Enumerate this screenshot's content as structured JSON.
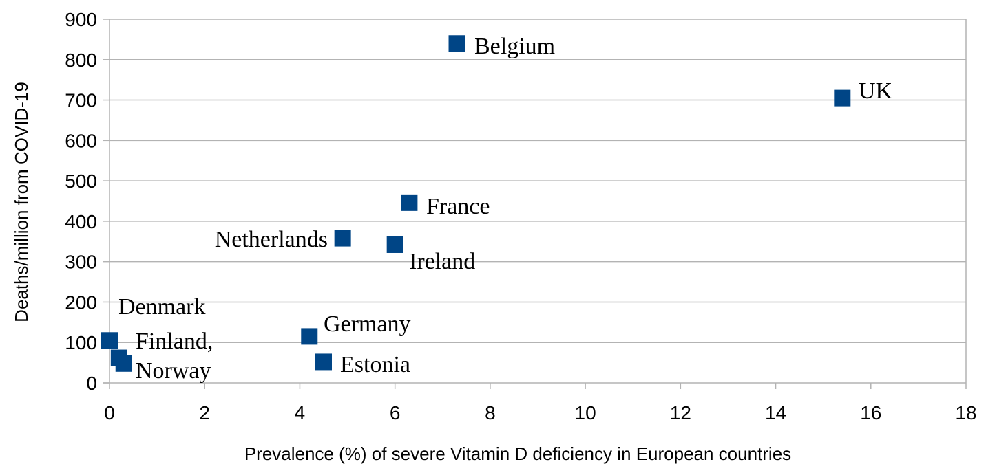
{
  "chart_data": {
    "type": "scatter",
    "title": "",
    "xlabel": "Prevalence (%) of severe Vitamin D deficiency in European countries",
    "ylabel": "Deaths/million from COVID-19",
    "xlim": [
      0,
      18
    ],
    "ylim": [
      0,
      900
    ],
    "x_ticks": [
      "0",
      "2",
      "4",
      "6",
      "8",
      "10",
      "12",
      "14",
      "16",
      "18"
    ],
    "y_ticks": [
      "0",
      "100",
      "200",
      "300",
      "400",
      "500",
      "600",
      "700",
      "800",
      "900"
    ],
    "grid": "horizontal",
    "legend": "none",
    "marker": "square",
    "marker_color": "#004586",
    "points": [
      {
        "x": 0.0,
        "y": 105
      },
      {
        "x": 0.2,
        "y": 62
      },
      {
        "x": 0.3,
        "y": 48
      },
      {
        "x": 4.2,
        "y": 115
      },
      {
        "x": 4.5,
        "y": 52
      },
      {
        "x": 4.9,
        "y": 358
      },
      {
        "x": 6.0,
        "y": 342
      },
      {
        "x": 6.3,
        "y": 446
      },
      {
        "x": 7.3,
        "y": 840
      },
      {
        "x": 15.4,
        "y": 705
      }
    ],
    "annotations": [
      "Belgium",
      "UK",
      "France",
      "Netherlands",
      "Ireland",
      "Denmark",
      "Germany",
      "Finland,",
      "Norway",
      "Estonia"
    ]
  }
}
